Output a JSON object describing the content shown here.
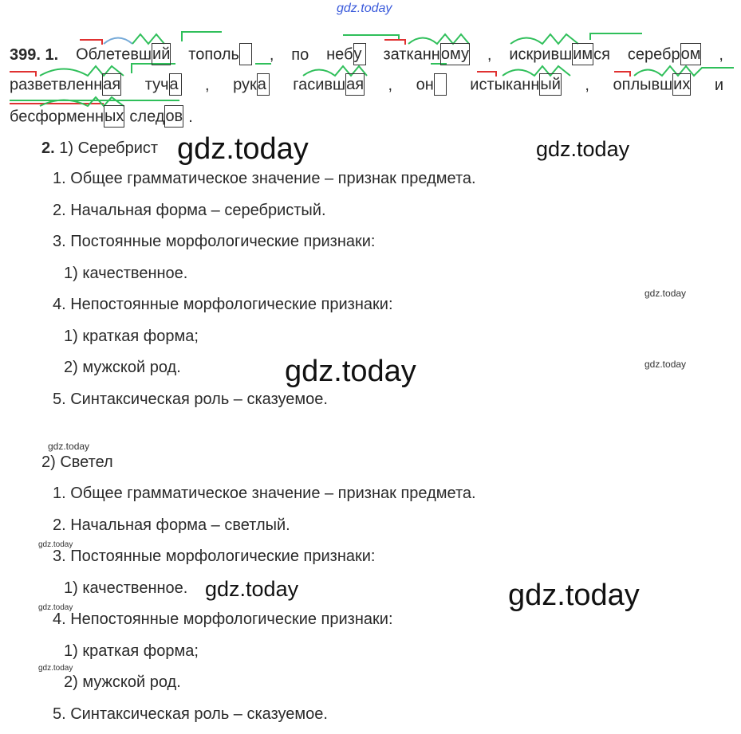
{
  "watermark": "gdz.today",
  "exercise": {
    "number": "399.",
    "part1_label": "1.",
    "lines": [
      [
        {
          "t": "Облетевш",
          "e": "ий"
        },
        {
          "t": "тополь",
          "e": " "
        },
        {
          "t": ","
        },
        {
          "t": "по"
        },
        {
          "t": "неб",
          "e": "у"
        },
        {
          "t": "затканн",
          "e": "ому"
        },
        {
          "t": ","
        },
        {
          "t": "искривш",
          "e": "им",
          "s": "ся"
        },
        {
          "t": "серебр",
          "e": "ом"
        },
        {
          "t": ","
        }
      ],
      [
        {
          "t": "разветвленн",
          "e": "ая"
        },
        {
          "t": "туч",
          "e": "а"
        },
        {
          "t": ","
        },
        {
          "t": "рук",
          "e": "а"
        },
        {
          "t": "гасивш",
          "e": "ая"
        },
        {
          "t": ","
        },
        {
          "t": "он",
          "e": " "
        },
        {
          "t": "истыканн",
          "e": "ый"
        },
        {
          "t": ","
        },
        {
          "t": "оплывш",
          "e": "их"
        },
        {
          "t": "и"
        }
      ],
      [
        {
          "t": "бесформенн",
          "e": "ых"
        },
        {
          "t": "след",
          "e": "ов"
        },
        {
          "t": "."
        }
      ]
    ],
    "part2_label": "2.",
    "sections": [
      {
        "title": "1) Серебрист",
        "items": [
          "1. Общее грамматическое значение – признак предмета.",
          "2. Начальная форма – серебристый.",
          "3. Постоянные морфологические признаки:",
          "1) качественное.",
          "4. Непостоянные морфологические признаки:",
          "1) краткая форма;",
          "2) мужской род.",
          "5. Синтаксическая роль – сказуемое."
        ]
      },
      {
        "title": "2) Светел",
        "items": [
          "1. Общее грамматическое значение – признак предмета.",
          "2. Начальная форма – светлый.",
          "3. Постоянные морфологические признаки:",
          "1) качественное.",
          "4. Непостоянные морфологические признаки:",
          "1) краткая форма;",
          "2) мужской род.",
          "5. Синтаксическая роль – сказуемое."
        ]
      }
    ]
  },
  "colors": {
    "text": "#2a2a2a",
    "prefix_mark": "#e03131",
    "root_arc": "#74a9d8",
    "suffix_mark": "#2fbf5a",
    "watermark_blue": "#3b5bdb"
  }
}
